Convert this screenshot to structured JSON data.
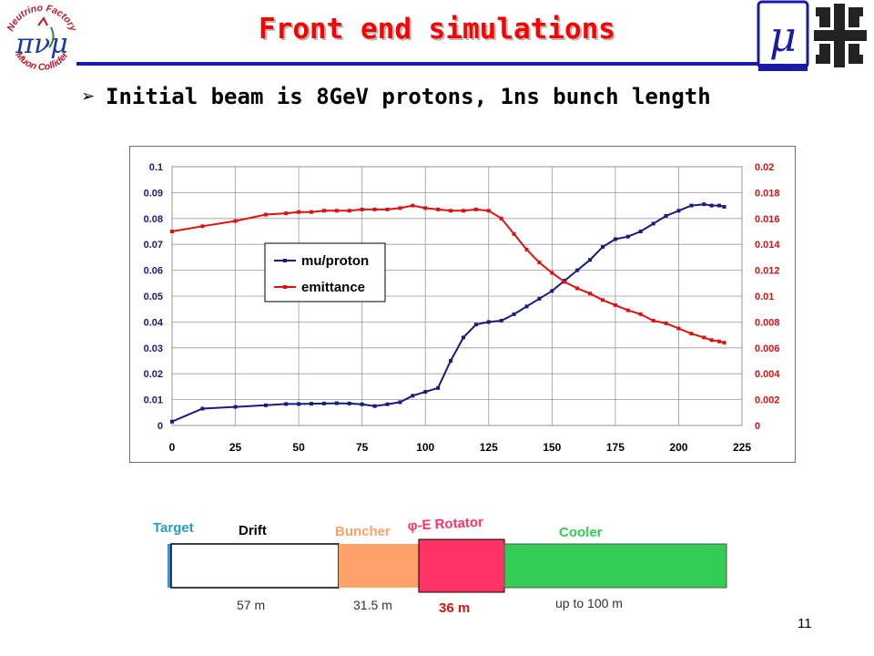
{
  "slide": {
    "title": "Front end simulations",
    "bullet": "Initial beam is 8GeV protons, 1ns bunch length",
    "page_number": "11"
  },
  "logos": {
    "left": {
      "icon": "neutrino-factory-muon-collider-logo",
      "top_text": "Neutrino Factory",
      "bottom_text": "Muon Collider",
      "glyphs": "πνμ"
    },
    "right": {
      "icon": "mu-and-fermilab-logo",
      "glyph": "μ"
    }
  },
  "colors": {
    "title": "#ff0000",
    "rule": "#1a1aa8",
    "mu_series": "#1a1a80",
    "emittance_series": "#e01010",
    "right_axis_text": "#e01010",
    "target": "#2a9ad8",
    "buncher": "#ffa26a",
    "rotator": "#ff3366",
    "cooler": "#33cc55"
  },
  "chart_data": {
    "type": "line",
    "x": [
      0,
      12,
      25,
      37,
      45,
      50,
      55,
      60,
      65,
      70,
      75,
      80,
      85,
      90,
      95,
      100,
      105,
      110,
      115,
      120,
      125,
      130,
      135,
      140,
      145,
      150,
      155,
      160,
      165,
      170,
      175,
      180,
      185,
      190,
      195,
      200,
      205,
      210,
      213,
      216,
      218
    ],
    "series": [
      {
        "name": "mu/proton",
        "axis": "left",
        "values": [
          0.0015,
          0.0065,
          0.0072,
          0.0078,
          0.0083,
          0.0083,
          0.0084,
          0.0085,
          0.0086,
          0.0085,
          0.0082,
          0.0075,
          0.0082,
          0.009,
          0.0115,
          0.013,
          0.0145,
          0.025,
          0.034,
          0.039,
          0.04,
          0.0405,
          0.043,
          0.046,
          0.049,
          0.052,
          0.056,
          0.06,
          0.064,
          0.069,
          0.072,
          0.073,
          0.075,
          0.078,
          0.081,
          0.083,
          0.085,
          0.0855,
          0.085,
          0.085,
          0.0845
        ]
      },
      {
        "name": "emittance",
        "axis": "right",
        "values": [
          0.015,
          0.0154,
          0.0158,
          0.0163,
          0.0164,
          0.0165,
          0.0165,
          0.0166,
          0.0166,
          0.0166,
          0.0167,
          0.0167,
          0.0167,
          0.0168,
          0.017,
          0.0168,
          0.0167,
          0.0166,
          0.0166,
          0.0167,
          0.0166,
          0.016,
          0.0148,
          0.0136,
          0.0126,
          0.0118,
          0.0111,
          0.0106,
          0.0102,
          0.0097,
          0.0093,
          0.0089,
          0.0086,
          0.0081,
          0.0079,
          0.0075,
          0.0071,
          0.0068,
          0.0066,
          0.0065,
          0.0064
        ]
      }
    ],
    "xlim": [
      0,
      225
    ],
    "ylim": [
      0,
      0.1
    ],
    "y2lim": [
      0,
      0.02
    ],
    "x_ticks": [
      "0",
      "25",
      "50",
      "75",
      "100",
      "125",
      "150",
      "175",
      "200",
      "225"
    ],
    "y_ticks": [
      "0",
      "0.01",
      "0.02",
      "0.03",
      "0.04",
      "0.05",
      "0.06",
      "0.07",
      "0.08",
      "0.09",
      "0.1"
    ],
    "y2_ticks": [
      "0",
      "0.002",
      "0.004",
      "0.006",
      "0.008",
      "0.01",
      "0.012",
      "0.014",
      "0.016",
      "0.018",
      "0.02"
    ],
    "legend": {
      "entries": [
        "mu/proton",
        "emittance"
      ],
      "placement": "upper-left"
    },
    "grid": true,
    "title": "",
    "xlabel": "",
    "ylabel": ""
  },
  "beamline": {
    "target": {
      "label": "Target"
    },
    "drift": {
      "label": "Drift",
      "length": "57 m"
    },
    "buncher": {
      "label": "Buncher",
      "length": "31.5 m"
    },
    "rotator": {
      "label": "φ-E Rotator",
      "length": "36 m"
    },
    "cooler": {
      "label": "Cooler",
      "length": "up to 100 m"
    }
  }
}
